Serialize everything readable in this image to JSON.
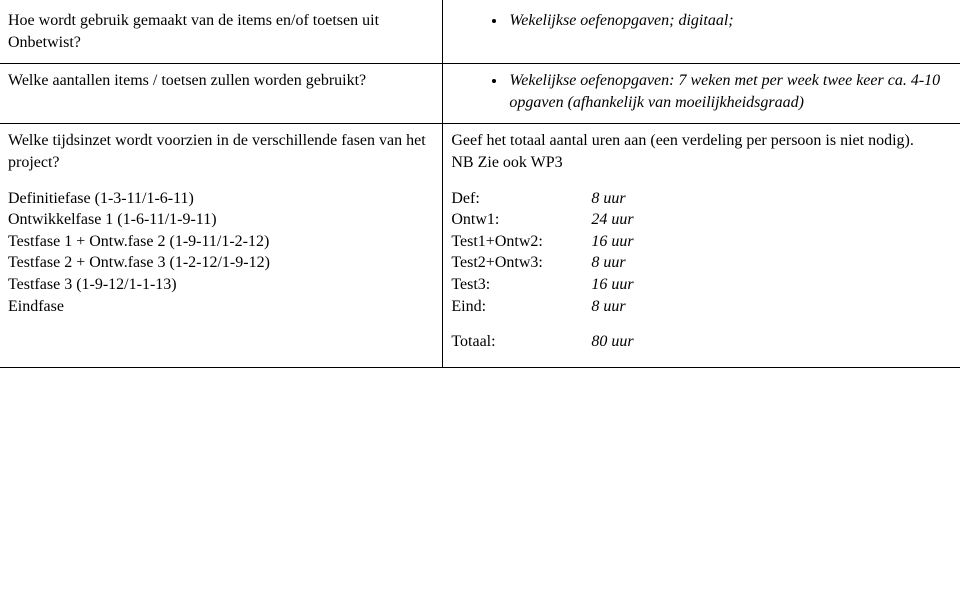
{
  "row1": {
    "q": "Hoe wordt gebruik gemaakt van de items en/of toetsen uit Onbetwist?",
    "a": "Wekelijkse oefenopgaven; digitaal;"
  },
  "row2": {
    "q": "Welke aantallen items / toetsen zullen worden gebruikt?",
    "a": "Wekelijkse oefenopgaven: 7 weken met per week twee keer ca. 4-10 opgaven (afhankelijk van moeilijkheidsgraad)"
  },
  "row3": {
    "q_intro": "Welke tijdsinzet wordt voorzien in de verschillende fasen van het project?",
    "q_lines": [
      "Definitiefase (1-3-11/1-6-11)",
      "Ontwikkelfase 1 (1-6-11/1-9-11)",
      "Testfase 1 + Ontw.fase 2 (1-9-11/1-2-12)",
      "Testfase 2 + Ontw.fase 3 (1-2-12/1-9-12)",
      "Testfase 3 (1-9-12/1-1-13)",
      "Eindfase"
    ],
    "a_intro_l1": "Geef het totaal aantal uren aan (een verdeling per persoon is niet nodig).",
    "a_intro_l2": "NB Zie ook WP3",
    "plan": [
      {
        "label": "Def:",
        "value": "8 uur"
      },
      {
        "label": "Ontw1:",
        "value": "24 uur"
      },
      {
        "label": "Test1+Ontw2:",
        "value": "16 uur"
      },
      {
        "label": "Test2+Ontw3:",
        "value": "8 uur"
      },
      {
        "label": "Test3:",
        "value": "16 uur"
      },
      {
        "label": "Eind:",
        "value": "8 uur"
      }
    ],
    "total": {
      "label": "Totaal:",
      "value": "80 uur"
    }
  }
}
